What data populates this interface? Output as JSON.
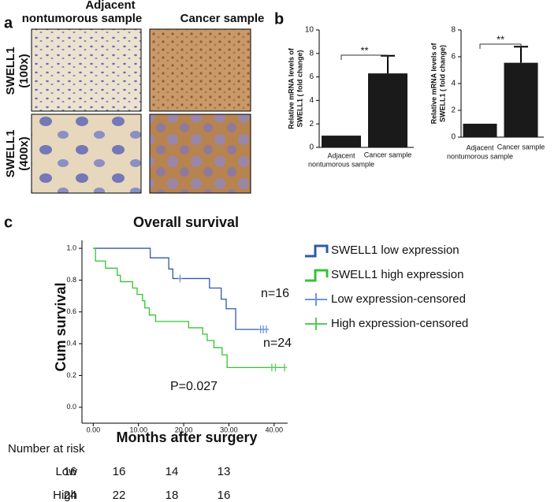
{
  "panel_labels": [
    "a",
    "b",
    "c"
  ],
  "images": {
    "column_headers": [
      [
        "Adjacent",
        "nontumorous  sample"
      ],
      [
        "Cancer sample"
      ]
    ],
    "row_labels": [
      [
        "SWELL1",
        "(100x)"
      ],
      [
        "SWELL1",
        "(400x)"
      ]
    ]
  },
  "chart_data": [
    {
      "type": "bar",
      "ylabel": "Relative mRNA levels of\nSWELL1 ( fold change)",
      "categories": [
        "Adjacent\nnontumorous sample",
        "Cancer sample"
      ],
      "values": [
        1,
        6.3
      ],
      "errors": [
        null,
        1.5
      ],
      "color": "#1a1a1a",
      "ylim": [
        0,
        10
      ],
      "yticks": [
        0,
        2,
        4,
        6,
        8,
        10
      ],
      "annotation": "**"
    },
    {
      "type": "bar",
      "ylabel": "Relative mRNA levels of\nSWELL1 ( fold change)",
      "categories": [
        "Adjacent\nnontumorous sample",
        "Cancer sample"
      ],
      "values": [
        1,
        5.55
      ],
      "errors": [
        null,
        1.2
      ],
      "color": "#1a1a1a",
      "ylim": [
        0,
        8
      ],
      "yticks": [
        0,
        2,
        4,
        6,
        8
      ],
      "annotation": "**"
    },
    {
      "type": "line",
      "step": true,
      "title": "Overall survival",
      "xlabel": "Months after surgery",
      "ylabel": "Cum survival",
      "xlim": [
        -2.5,
        43
      ],
      "ylim": [
        -0.1,
        1.05
      ],
      "xticks": [
        {
          "value": 0,
          "label": "0.00"
        },
        {
          "value": 10,
          "label": "10.00"
        },
        {
          "value": 20,
          "label": "20.00"
        },
        {
          "value": 30,
          "label": "30.00"
        },
        {
          "value": 40,
          "label": "40.00"
        }
      ],
      "yticks": [
        {
          "value": 0,
          "label": "0.0"
        },
        {
          "value": 0.2,
          "label": "0.2"
        },
        {
          "value": 0.4,
          "label": "0.4"
        },
        {
          "value": 0.6,
          "label": "0.6"
        },
        {
          "value": 0.8,
          "label": "0.8"
        },
        {
          "value": 1,
          "label": "1.0"
        }
      ],
      "legend": "right",
      "series": [
        {
          "name": "SWELL1 low expression",
          "color": "#2f5aa8",
          "x": [
            0,
            12.6,
            16.7,
            17.6,
            25.7,
            28.3,
            29.4,
            31.5,
            38.8
          ],
          "values": [
            1,
            0.94,
            0.87,
            0.81,
            0.75,
            0.68,
            0.62,
            0.49,
            0.49
          ]
        },
        {
          "name": "SWELL1 high expression",
          "color": "#33c433",
          "x": [
            0,
            0.5,
            2.7,
            5.3,
            6.0,
            8.7,
            9.7,
            10.9,
            11.4,
            12.4,
            13.8,
            21.1,
            24.2,
            25.2,
            26.7,
            28.5,
            29.6,
            42.5
          ],
          "values": [
            1,
            0.92,
            0.875,
            0.83,
            0.79,
            0.75,
            0.71,
            0.67,
            0.625,
            0.58,
            0.54,
            0.5,
            0.46,
            0.42,
            0.375,
            0.33,
            0.25,
            0.25
          ]
        },
        {
          "name": "Low expression-censored",
          "color": "#6f95d8",
          "marker": "+",
          "x": [
            19.2,
            37.0,
            37.6,
            38.3
          ],
          "values": [
            0.81,
            0.49,
            0.49,
            0.49
          ]
        },
        {
          "name": "High expression-censored",
          "color": "#55cc55",
          "marker": "+",
          "x": [
            39.5,
            40.3,
            42.3
          ],
          "values": [
            0.25,
            0.25,
            0.25
          ]
        }
      ],
      "annotations": [
        "n=16",
        "n=24",
        "P=0.027"
      ]
    }
  ],
  "risk_table": {
    "title": "Number at risk",
    "rows": [
      {
        "label": "Low",
        "values": [
          16,
          16,
          14,
          13
        ]
      },
      {
        "label": "High",
        "values": [
          24,
          22,
          18,
          16
        ]
      }
    ]
  }
}
